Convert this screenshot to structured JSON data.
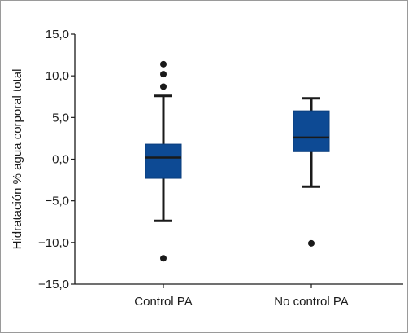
{
  "chart_data": {
    "type": "boxplot",
    "title": "",
    "xlabel": "",
    "ylabel": "Hidratación % agua corporal total",
    "ylim": [
      -15,
      15
    ],
    "yticks": [
      15,
      10,
      5,
      0,
      -5,
      -10,
      -15
    ],
    "ytick_labels": [
      "15,0",
      "10,0",
      "5,0",
      "0,0",
      "−5,0",
      "−10,0",
      "−15,0"
    ],
    "grid": false,
    "legend": "none",
    "box_color": "#0d4a94",
    "median_color": "#1a1a1a",
    "whisker_color": "#1a1a1a",
    "categories": [
      "Control PA",
      "No control PA"
    ],
    "boxes": [
      {
        "category": "Control PA",
        "whisker_low": -7.4,
        "q1": -2.3,
        "median": 0.2,
        "q3": 1.8,
        "whisker_high": 7.6,
        "outliers": [
          11.4,
          10.2,
          8.7,
          -11.9
        ]
      },
      {
        "category": "No control PA",
        "whisker_low": -3.3,
        "q1": 0.9,
        "median": 2.6,
        "q3": 5.8,
        "whisker_high": 7.3,
        "outliers": [
          -10.1
        ]
      }
    ]
  }
}
